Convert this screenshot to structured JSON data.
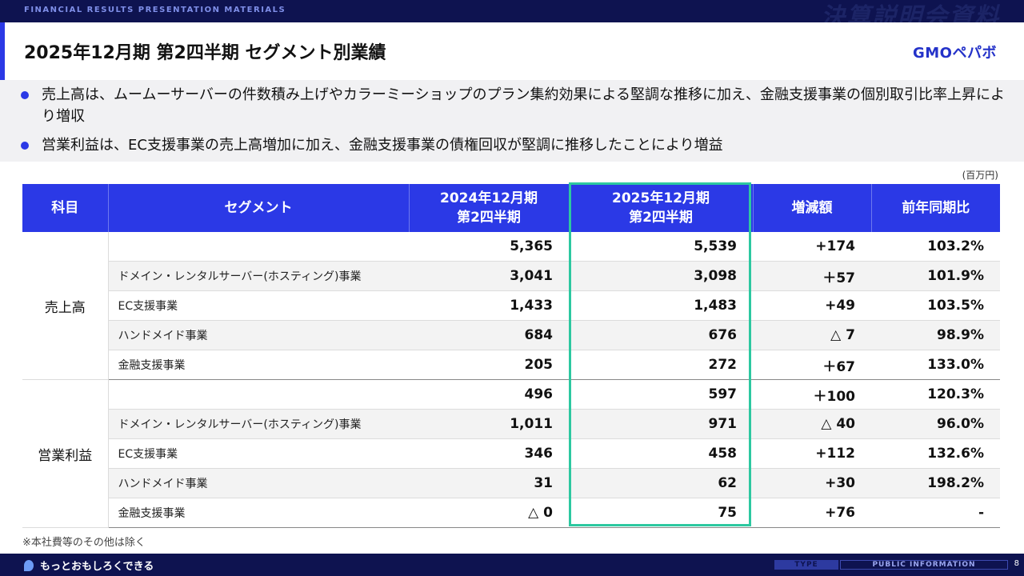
{
  "header": {
    "tag": "FINANCIAL RESULTS PRESENTATION MATERIALS",
    "big_title": "決算説明会資料",
    "title": "2025年12月期 第2四半期 セグメント別業績",
    "logo": "GMOペパボ"
  },
  "bullets": [
    "売上高は、ムームーサーバーの件数積み上げやカラーミーショップのプラン集約効果による堅調な推移に加え、金融支援事業の個別取引比率上昇により増収",
    "営業利益は、EC支援事業の売上高増加に加え、金融支援事業の債権回収が堅調に推移したことにより増益"
  ],
  "unit": "(百万円)",
  "table": {
    "headers": {
      "item": "科目",
      "segment": "セグメント",
      "prev": "2024年12月期\n第2四半期",
      "curr": "2025年12月期\n第2四半期",
      "diff": "増減額",
      "ratio": "前年同期比"
    },
    "groups": [
      {
        "name": "売上高",
        "rows": [
          {
            "segment": "",
            "prev": "5,365",
            "curr": "5,539",
            "diff": "+174",
            "ratio": "103.2%"
          },
          {
            "segment": "ドメイン・レンタルサーバー(ホスティング)事業",
            "prev": "3,041",
            "curr": "3,098",
            "diff": "＋57",
            "ratio": "101.9%"
          },
          {
            "segment": "EC支援事業",
            "prev": "1,433",
            "curr": "1,483",
            "diff": "+49",
            "ratio": "103.5%"
          },
          {
            "segment": "ハンドメイド事業",
            "prev": "684",
            "curr": "676",
            "diff": "△ 7",
            "ratio": "98.9%"
          },
          {
            "segment": "金融支援事業",
            "prev": "205",
            "curr": "272",
            "diff": "＋67",
            "ratio": "133.0%"
          }
        ]
      },
      {
        "name": "営業利益",
        "rows": [
          {
            "segment": "",
            "prev": "496",
            "curr": "597",
            "diff": "＋100",
            "ratio": "120.3%"
          },
          {
            "segment": "ドメイン・レンタルサーバー(ホスティング)事業",
            "prev": "1,011",
            "curr": "971",
            "diff": "△ 40",
            "ratio": "96.0%"
          },
          {
            "segment": "EC支援事業",
            "prev": "346",
            "curr": "458",
            "diff": "+112",
            "ratio": "132.6%"
          },
          {
            "segment": "ハンドメイド事業",
            "prev": "31",
            "curr": "62",
            "diff": "+30",
            "ratio": "198.2%"
          },
          {
            "segment": "金融支援事業",
            "prev": "△ 0",
            "curr": "75",
            "diff": "+76",
            "ratio": "-"
          }
        ]
      }
    ]
  },
  "note": "※本社費等のその他は除く",
  "footer": {
    "slogan": "もっとおもしろくできる",
    "type_label": "TYPE",
    "public_label": "PUBLIC INFORMATION",
    "page_number": "8"
  },
  "colors": {
    "navy": "#0e1350",
    "accent_blue": "#2b39e6",
    "highlight_green": "#2dc8a0"
  }
}
